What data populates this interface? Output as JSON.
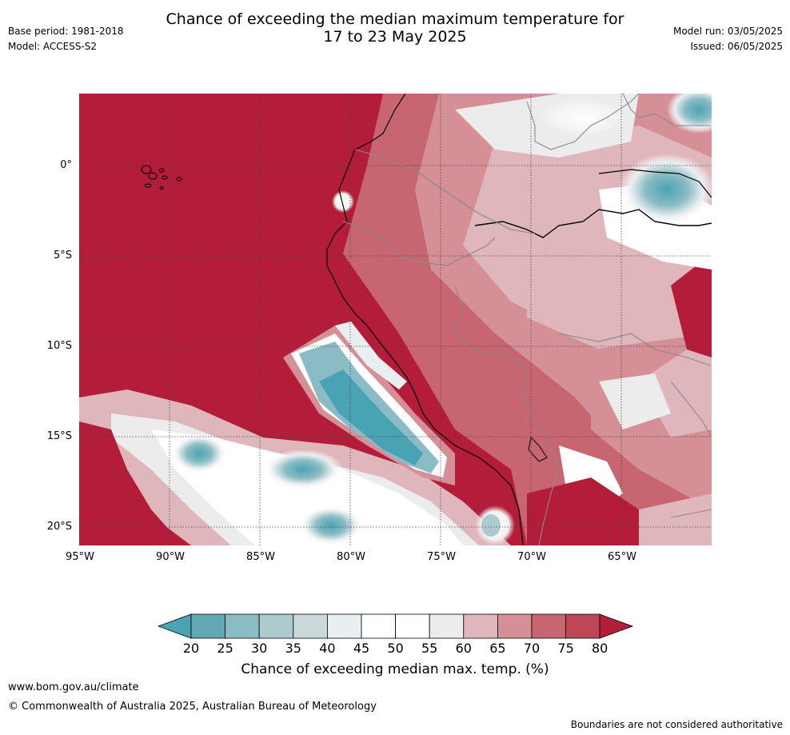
{
  "header": {
    "title_line1": "Chance of exceeding the median maximum temperature for",
    "title_line2": "17 to 23 May 2025",
    "base_period": "Base period: 1981-2018",
    "model": "Model: ACCESS-S2",
    "model_run": "Model run: 03/05/2025",
    "issued": "Issued: 06/05/2025"
  },
  "map": {
    "lat_labels": [
      "0°",
      "5°S",
      "10°S",
      "15°S",
      "20°S"
    ],
    "lon_labels": [
      "95°W",
      "90°W",
      "85°W",
      "80°W",
      "75°W",
      "70°W",
      "65°W"
    ],
    "lat_values": [
      0,
      -5,
      -10,
      -15,
      -20
    ],
    "lon_values": [
      -95,
      -90,
      -85,
      -80,
      -75,
      -70,
      -65
    ],
    "extent": {
      "lon_min": -95,
      "lon_max": -60,
      "lat_min": -21,
      "lat_max": 4
    }
  },
  "colorbar": {
    "ticks": [
      "20",
      "25",
      "30",
      "35",
      "40",
      "45",
      "50",
      "55",
      "60",
      "65",
      "70",
      "75",
      "80"
    ],
    "colors": [
      "#63a8b5",
      "#8bbcc5",
      "#adcbcf",
      "#cbd9da",
      "#e9eef0",
      "#ffffff",
      "#ffffff",
      "#ececec",
      "#dfb6bb",
      "#d48f97",
      "#c76570",
      "#bf4656"
    ],
    "under_color": "#4aa3b3",
    "over_color": "#b31d39",
    "label": "Chance of exceeding median max. temp. (%)"
  },
  "footer": {
    "url": "www.bom.gov.au/climate",
    "copyright": "© Commonwealth of Australia 2025, Australian Bureau of Meteorology",
    "disclaimer": "Boundaries are not considered authoritative"
  }
}
